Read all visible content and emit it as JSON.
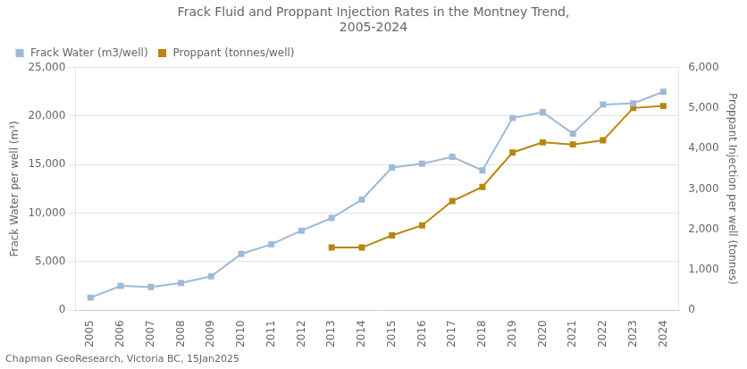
{
  "chart_data": {
    "type": "line",
    "title": "Frack Fluid and Proppant Injection Rates in the Montney Trend,\n2005-2024",
    "ylabel": "Frack Water per well (m³)",
    "y2label": "Proppant Injection per well (tonnes)",
    "caption": "Chapman GeoResearch, Victoria BC, 15Jan2025",
    "xlim": [
      2004.5,
      2024.5
    ],
    "xticks": [
      2005,
      2006,
      2007,
      2008,
      2009,
      2010,
      2011,
      2012,
      2013,
      2014,
      2015,
      2016,
      2017,
      2018,
      2019,
      2020,
      2021,
      2022,
      2023,
      2024
    ],
    "ylim": [
      0,
      25000
    ],
    "yticks": [
      0,
      {
        "value": 5000,
        "label": "5,000"
      },
      {
        "value": 10000,
        "label": "10,000"
      },
      {
        "value": 15000,
        "label": "15,000"
      },
      {
        "value": 20000,
        "label": "20,000"
      },
      {
        "value": 25000,
        "label": "25,000"
      }
    ],
    "y2lim": [
      0,
      6000
    ],
    "y2ticks": [
      0,
      {
        "value": 1000,
        "label": "1,000"
      },
      {
        "value": 2000,
        "label": "2,000"
      },
      {
        "value": 3000,
        "label": "3,000"
      },
      {
        "value": 4000,
        "label": "4,000"
      },
      {
        "value": 5000,
        "label": "5,000"
      },
      {
        "value": 6000,
        "label": "6,000"
      }
    ],
    "grid": true,
    "legend": "upper left",
    "series": [
      {
        "name": "Frack Water (m3/well)",
        "color": "#9dbad8",
        "marker": "square",
        "x": [
          2005,
          2006,
          2007,
          2008,
          2009,
          2010,
          2011,
          2012,
          2013,
          2014,
          2015,
          2016,
          2017,
          2018,
          2019,
          2020,
          2021,
          2022,
          2023,
          2024
        ],
        "values": [
          1300,
          2500,
          2400,
          2800,
          3500,
          5800,
          6800,
          8200,
          9500,
          11400,
          14700,
          15100,
          15800,
          14400,
          19800,
          20400,
          18200,
          21200,
          21300,
          22500
        ]
      },
      {
        "name": "Proppant (tonnes/well)",
        "color": "#b8860b",
        "marker": "square",
        "axis": "y2",
        "x": [
          2013,
          2014,
          2015,
          2016,
          2017,
          2018,
          2019,
          2020,
          2021,
          2022,
          2023,
          2024
        ],
        "values": [
          1550,
          1550,
          1850,
          2100,
          2700,
          3050,
          3900,
          4150,
          4100,
          4200,
          5000,
          5050
        ]
      }
    ]
  }
}
